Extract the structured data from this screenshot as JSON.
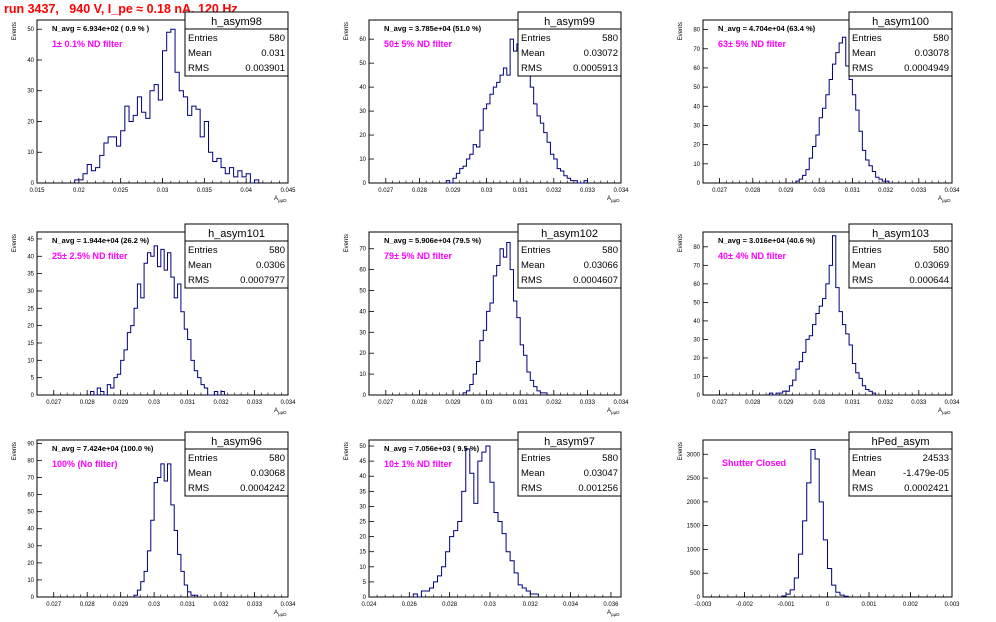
{
  "page_title": "run 3437,   940 V, I_pe ≈ 0.18 nA, 120 Hz",
  "colors": {
    "histogram": "#000080",
    "title": "#ff0000",
    "filter_label": "#ff00ff",
    "frame": "#000000"
  },
  "chart_data": [
    {
      "type": "bar",
      "name": "h_asym98",
      "navg": "N_avg = 6.934e+02 ( 0.9 % )",
      "filter": "1± 0.1% ND filter",
      "stats": {
        "entries": "580",
        "mean": "0.031",
        "rms": "0.003901"
      },
      "ylabel": "Events",
      "xlabel": "A_{μμD}",
      "xlim": [
        0.015,
        0.045
      ],
      "ylim": [
        0,
        53
      ],
      "xticks": [
        "0.015",
        "0.02",
        "0.025",
        "0.03",
        "0.035",
        "0.04",
        "0.045"
      ],
      "yticks": [
        "0",
        "10",
        "20",
        "30",
        "40",
        "50"
      ],
      "bins_x0": 0.0195,
      "bin_width": 0.0005,
      "values": [
        1,
        1,
        3,
        6,
        4,
        5,
        9,
        13,
        15,
        15,
        12,
        17,
        25,
        20,
        22,
        28,
        23,
        21,
        30,
        32,
        27,
        43,
        49,
        50,
        36,
        30,
        28,
        22,
        25,
        24,
        15,
        20,
        10,
        7,
        8,
        5,
        3,
        5,
        2,
        4,
        2,
        3,
        0,
        1
      ]
    },
    {
      "type": "bar",
      "name": "h_asym99",
      "navg": "N_avg = 3.785e+04 (51.0 %)",
      "filter": "50± 5% ND filter",
      "stats": {
        "entries": "580",
        "mean": "0.03072",
        "rms": "0.0005913"
      },
      "ylabel": "Events",
      "xlabel": "A_{μμD}",
      "xlim": [
        0.0265,
        0.034
      ],
      "ylim": [
        0,
        68
      ],
      "xticks": [
        "0.027",
        "0.028",
        "0.029",
        "0.03",
        "0.031",
        "0.032",
        "0.033",
        "0.034"
      ],
      "yticks": [
        "0",
        "10",
        "20",
        "30",
        "40",
        "50",
        "60"
      ],
      "bins_x0": 0.0288,
      "bin_width": 0.0001,
      "values": [
        1,
        0,
        2,
        4,
        6,
        7,
        10,
        12,
        16,
        15,
        22,
        31,
        33,
        37,
        40,
        42,
        45,
        48,
        45,
        60,
        55,
        58,
        52,
        50,
        54,
        40,
        33,
        28,
        25,
        21,
        17,
        12,
        10,
        6,
        5,
        3,
        2,
        1,
        1,
        0,
        0,
        1
      ]
    },
    {
      "type": "bar",
      "name": "h_asym100",
      "navg": "N_avg = 4.704e+04 (63.4 %)",
      "filter": "63± 5% ND filter",
      "stats": {
        "entries": "580",
        "mean": "0.03078",
        "rms": "0.0004949"
      },
      "ylabel": "Events",
      "xlabel": "A_{μμD}",
      "xlim": [
        0.0265,
        0.034
      ],
      "ylim": [
        0,
        85
      ],
      "xticks": [
        "0.027",
        "0.028",
        "0.029",
        "0.03",
        "0.031",
        "0.032",
        "0.033",
        "0.034"
      ],
      "yticks": [
        "0",
        "10",
        "20",
        "30",
        "40",
        "50",
        "60",
        "70",
        "80"
      ],
      "bins_x0": 0.0293,
      "bin_width": 0.0001,
      "values": [
        1,
        2,
        4,
        7,
        13,
        19,
        25,
        34,
        39,
        46,
        54,
        62,
        68,
        73,
        76,
        61,
        54,
        46,
        38,
        27,
        17,
        12,
        9,
        6,
        3,
        2,
        1,
        1
      ]
    },
    {
      "type": "bar",
      "name": "h_asym101",
      "navg": "N_avg = 1.944e+04 (26.2 %)",
      "filter": "25± 2.5% ND filter",
      "stats": {
        "entries": "580",
        "mean": "0.0306",
        "rms": "0.0007977"
      },
      "ylabel": "Events",
      "xlabel": "A_{μμD}",
      "xlim": [
        0.0265,
        0.034
      ],
      "ylim": [
        0,
        47
      ],
      "xticks": [
        "0.027",
        "0.028",
        "0.029",
        "0.03",
        "0.031",
        "0.032",
        "0.033",
        "0.034"
      ],
      "yticks": [
        "0",
        "5",
        "10",
        "15",
        "20",
        "25",
        "30",
        "35",
        "40",
        "45"
      ],
      "bins_x0": 0.0281,
      "bin_width": 0.0001,
      "values": [
        1,
        0,
        2,
        1,
        0,
        3,
        2,
        5,
        6,
        10,
        13,
        18,
        20,
        25,
        32,
        28,
        38,
        41,
        40,
        43,
        37,
        42,
        36,
        41,
        34,
        28,
        32,
        24,
        19,
        16,
        10,
        7,
        5,
        3,
        2,
        0,
        0,
        1,
        0,
        1
      ]
    },
    {
      "type": "bar",
      "name": "h_asym102",
      "navg": "N_avg = 5.906e+04 (79.5 %)",
      "filter": "79± 5% ND filter",
      "stats": {
        "entries": "580",
        "mean": "0.03066",
        "rms": "0.0004607"
      },
      "ylabel": "Events",
      "xlabel": "A_{μμD}",
      "xlim": [
        0.0265,
        0.034
      ],
      "ylim": [
        0,
        78
      ],
      "xticks": [
        "0.027",
        "0.028",
        "0.029",
        "0.03",
        "0.031",
        "0.032",
        "0.033",
        "0.034"
      ],
      "yticks": [
        "0",
        "10",
        "20",
        "30",
        "40",
        "50",
        "60",
        "70"
      ],
      "bins_x0": 0.0293,
      "bin_width": 0.0001,
      "values": [
        1,
        2,
        5,
        10,
        16,
        26,
        31,
        40,
        44,
        57,
        62,
        70,
        66,
        73,
        60,
        45,
        37,
        24,
        19,
        11,
        7,
        4,
        2,
        1,
        1
      ]
    },
    {
      "type": "bar",
      "name": "h_asym103",
      "navg": "N_avg = 3.016e+04 (40.6 %)",
      "filter": "40± 4% ND filter",
      "stats": {
        "entries": "580",
        "mean": "0.03069",
        "rms": "0.000644"
      },
      "ylabel": "Events",
      "xlabel": "A_{μμD}",
      "xlim": [
        0.0265,
        0.034
      ],
      "ylim": [
        0,
        88
      ],
      "xticks": [
        "0.027",
        "0.028",
        "0.029",
        "0.03",
        "0.031",
        "0.032",
        "0.033",
        "0.034"
      ],
      "yticks": [
        "0",
        "10",
        "20",
        "30",
        "40",
        "50",
        "60",
        "70",
        "80"
      ],
      "bins_x0": 0.0285,
      "bin_width": 0.0001,
      "values": [
        1,
        0,
        1,
        1,
        2,
        2,
        5,
        8,
        14,
        18,
        23,
        30,
        32,
        38,
        44,
        48,
        52,
        60,
        70,
        86,
        58,
        45,
        38,
        33,
        27,
        17,
        12,
        9,
        5,
        3,
        2,
        1
      ]
    },
    {
      "type": "bar",
      "name": "h_asym96",
      "navg": "N_avg = 7.424e+04 (100.0 %)",
      "filter": "100% (No filter)",
      "stats": {
        "entries": "580",
        "mean": "0.03068",
        "rms": "0.0004242"
      },
      "ylabel": "Events",
      "xlabel": "A_{μμD}",
      "xlim": [
        0.0265,
        0.034
      ],
      "ylim": [
        0,
        92
      ],
      "xticks": [
        "0.027",
        "0.028",
        "0.029",
        "0.03",
        "0.031",
        "0.032",
        "0.033",
        "0.034"
      ],
      "yticks": [
        "0",
        "10",
        "20",
        "30",
        "40",
        "50",
        "60",
        "70",
        "80",
        "90"
      ],
      "bins_x0": 0.0294,
      "bin_width": 0.0001,
      "values": [
        1,
        4,
        9,
        15,
        27,
        45,
        67,
        70,
        78,
        68,
        78,
        54,
        39,
        25,
        15,
        7,
        3,
        1,
        1
      ]
    },
    {
      "type": "bar",
      "name": "h_asym97",
      "navg": "N_avg = 7.056e+03 ( 9.5 %)",
      "filter": "10± 1% ND filter",
      "stats": {
        "entries": "580",
        "mean": "0.03047",
        "rms": "0.001256"
      },
      "ylabel": "Events",
      "xlabel": "A_{μμD}",
      "xlim": [
        0.024,
        0.0365
      ],
      "ylim": [
        0,
        52
      ],
      "xticks": [
        "0.024",
        "0.026",
        "0.028",
        "0.03",
        "0.032",
        "0.034",
        "0.036"
      ],
      "yticks": [
        "0",
        "5",
        "10",
        "15",
        "20",
        "25",
        "30",
        "35",
        "40",
        "45",
        "50"
      ],
      "bins_x0": 0.0262,
      "bin_width": 0.0002,
      "values": [
        1,
        0,
        2,
        2,
        3,
        5,
        7,
        10,
        15,
        20,
        22,
        25,
        35,
        49,
        41,
        31,
        45,
        48,
        50,
        38,
        28,
        25,
        21,
        15,
        12,
        8,
        4,
        3,
        2,
        1,
        1
      ]
    },
    {
      "type": "bar",
      "name": "hPed_asym",
      "navg": "",
      "filter": "Shutter Closed",
      "stats": {
        "entries": "24533",
        "mean": "-1.479e-05",
        "rms": "0.0002421"
      },
      "ylabel": "Events",
      "xlabel": "",
      "xlim": [
        -0.003,
        0.003
      ],
      "ylim": [
        0,
        3300
      ],
      "xticks": [
        "-0.003",
        "-0.002",
        "-0.001",
        "0",
        "0.001",
        "0.002",
        "0.003"
      ],
      "yticks": [
        "0",
        "500",
        "1000",
        "1500",
        "2000",
        "2500",
        "3000"
      ],
      "bins_x0": -0.0011,
      "bin_width": 0.0001,
      "values": [
        20,
        60,
        150,
        400,
        900,
        1600,
        2400,
        3100,
        2900,
        2000,
        1200,
        600,
        250,
        100,
        40,
        15
      ]
    }
  ]
}
